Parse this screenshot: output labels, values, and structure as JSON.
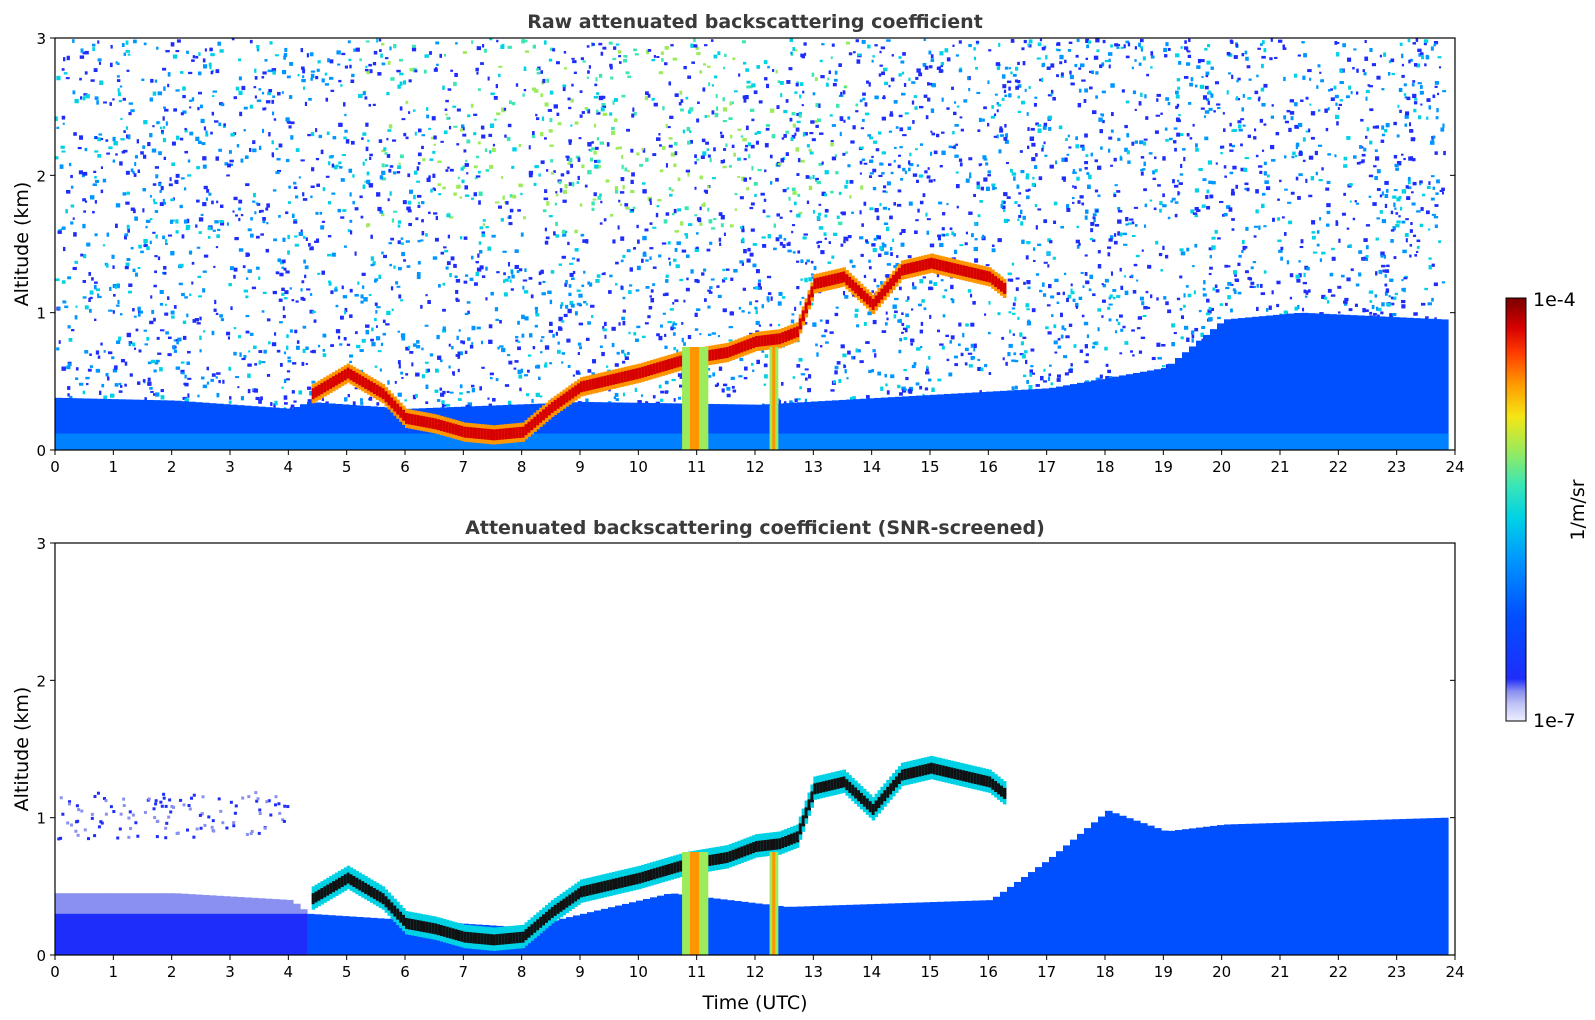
{
  "chart_data": [
    {
      "type": "heatmap",
      "title": "Raw attenuated backscattering coefficient",
      "xlabel": "",
      "ylabel": "Altitude (km)",
      "xlim": [
        0,
        24
      ],
      "ylim": [
        0,
        3
      ],
      "xticks": [
        0,
        1,
        2,
        3,
        4,
        5,
        6,
        7,
        8,
        9,
        10,
        11,
        12,
        13,
        14,
        15,
        16,
        17,
        18,
        19,
        20,
        21,
        22,
        23,
        24
      ],
      "yticks": [
        0,
        1,
        2,
        3
      ],
      "features": {
        "boundary_layer_top_km": [
          [
            0,
            0.38
          ],
          [
            2,
            0.36
          ],
          [
            4,
            0.3
          ],
          [
            4.3,
            0.35
          ],
          [
            6,
            0.3
          ],
          [
            9,
            0.35
          ],
          [
            12,
            0.33
          ],
          [
            17,
            0.45
          ],
          [
            19,
            0.6
          ],
          [
            20,
            0.95
          ],
          [
            21.3,
            1.0
          ],
          [
            23.8,
            0.95
          ]
        ],
        "strong_layer_km": [
          [
            4.4,
            0.4
          ],
          [
            5,
            0.55
          ],
          [
            5.6,
            0.4
          ],
          [
            6,
            0.22
          ],
          [
            6.5,
            0.18
          ],
          [
            7,
            0.12
          ],
          [
            7.5,
            0.1
          ],
          [
            8,
            0.12
          ],
          [
            8.5,
            0.3
          ],
          [
            9,
            0.45
          ],
          [
            10,
            0.55
          ],
          [
            10.8,
            0.65
          ],
          [
            11.5,
            0.7
          ],
          [
            12,
            0.78
          ],
          [
            12.4,
            0.8
          ],
          [
            12.7,
            0.85
          ],
          [
            13,
            1.2
          ],
          [
            13.5,
            1.25
          ],
          [
            14,
            1.05
          ],
          [
            14.5,
            1.3
          ],
          [
            15,
            1.35
          ],
          [
            16,
            1.25
          ],
          [
            16.3,
            1.15
          ]
        ],
        "precipitation_columns_utc": [
          [
            10.75,
            11.2
          ],
          [
            12.25,
            12.4
          ]
        ],
        "noise_fade_altitude_km": 3.0,
        "data_end_utc": 23.8
      }
    },
    {
      "type": "heatmap",
      "title": "Attenuated backscattering coefficient (SNR-screened)",
      "xlabel": "Time (UTC)",
      "ylabel": "Altitude (km)",
      "xlim": [
        0,
        24
      ],
      "ylim": [
        0,
        3
      ],
      "xticks": [
        0,
        1,
        2,
        3,
        4,
        5,
        6,
        7,
        8,
        9,
        10,
        11,
        12,
        13,
        14,
        15,
        16,
        17,
        18,
        19,
        20,
        21,
        22,
        23,
        24
      ],
      "yticks": [
        0,
        1,
        2,
        3
      ],
      "features": {
        "screened_boundary_top_km": [
          [
            0,
            0.45
          ],
          [
            2,
            0.45
          ],
          [
            4,
            0.4
          ],
          [
            4.3,
            0.3
          ],
          [
            8,
            0.2
          ],
          [
            10.5,
            0.45
          ],
          [
            12.5,
            0.35
          ],
          [
            16,
            0.4
          ],
          [
            17,
            0.7
          ],
          [
            18,
            1.05
          ],
          [
            19,
            0.9
          ],
          [
            20,
            0.95
          ],
          [
            23.8,
            1.0
          ]
        ],
        "data_end_utc": 23.8
      }
    }
  ],
  "colorbar": {
    "label": "1/m/sr",
    "min_label": "1e-7",
    "max_label": "1e-4",
    "scale": "log",
    "colors": [
      "#f0f0ff",
      "#c0c4f5",
      "#8a90ef",
      "#1e2dfa",
      "#0050ff",
      "#0096ff",
      "#00d2e6",
      "#3ce6b4",
      "#9beb5a",
      "#f5e614",
      "#ff9600",
      "#ff3c00",
      "#d70000",
      "#7a0000"
    ]
  }
}
